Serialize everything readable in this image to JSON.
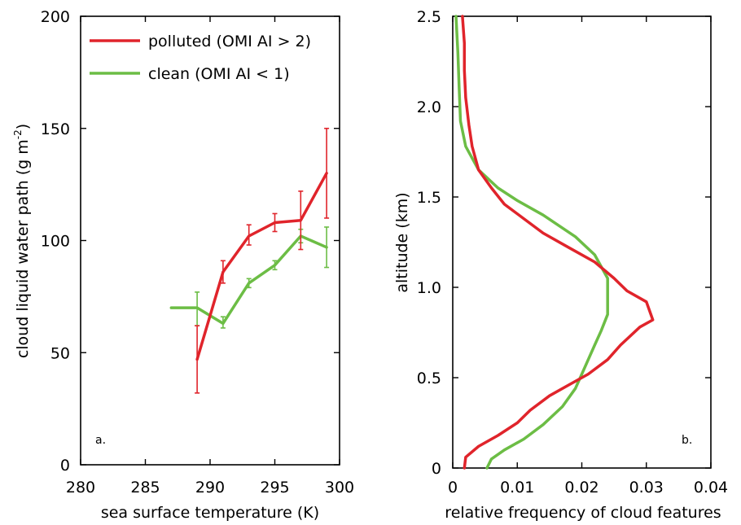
{
  "colors": {
    "polluted": "#e0242b",
    "clean": "#6cbd45",
    "axis": "#000000"
  },
  "chart_data": [
    {
      "type": "line",
      "panel_label": "a.",
      "xlabel": "sea surface temperature (K)",
      "ylabel_main": "cloud liquid water path (g m",
      "ylabel_sup": "-2",
      "ylabel_end": ")",
      "xlim": [
        280,
        300
      ],
      "ylim": [
        0,
        200
      ],
      "xticks": [
        280,
        285,
        290,
        295,
        300
      ],
      "yticks": [
        0,
        50,
        100,
        150,
        200
      ],
      "legend_position": "top-left",
      "series": [
        {
          "name": "polluted (OMI AI > 2)",
          "color_key": "polluted",
          "points": [
            [
              289,
              47
            ],
            [
              291,
              86
            ],
            [
              293,
              102
            ],
            [
              295,
              108
            ],
            [
              297,
              109
            ],
            [
              299,
              130
            ]
          ],
          "error_bars": [
            [
              289,
              32,
              62
            ],
            [
              291,
              81,
              91
            ],
            [
              293,
              98,
              107
            ],
            [
              295,
              104,
              112
            ],
            [
              297,
              96,
              122
            ],
            [
              299,
              110,
              150
            ]
          ]
        },
        {
          "name": "clean (OMI AI < 1)",
          "color_key": "clean",
          "points": [
            [
              287,
              70
            ],
            [
              289,
              70
            ],
            [
              291,
              63
            ],
            [
              293,
              81
            ],
            [
              295,
              89
            ],
            [
              297,
              102
            ],
            [
              299,
              97
            ]
          ],
          "error_bars": [
            [
              289,
              62,
              77
            ],
            [
              291,
              61,
              66
            ],
            [
              293,
              79,
              83
            ],
            [
              295,
              87,
              91
            ],
            [
              297,
              99,
              105
            ],
            [
              299,
              88,
              106
            ]
          ]
        }
      ]
    },
    {
      "type": "line",
      "panel_label": "b.",
      "xlabel": "relative frequency of cloud features",
      "ylabel": "altitude (km)",
      "xlim": [
        0,
        0.04
      ],
      "ylim": [
        0,
        2.5
      ],
      "xticks": [
        "0",
        "0.01",
        "0.02",
        "0.03",
        "0.04"
      ],
      "xtick_values": [
        0,
        0.01,
        0.02,
        0.03,
        0.04
      ],
      "yticks": [
        "0",
        "0.5",
        "1.0",
        "1.5",
        "2.0",
        "2.5"
      ],
      "ytick_values": [
        0,
        0.5,
        1.0,
        1.5,
        2.0,
        2.5
      ],
      "series": [
        {
          "color_key": "polluted",
          "points": [
            [
              0.0018,
              0.0
            ],
            [
              0.002,
              0.06
            ],
            [
              0.004,
              0.12
            ],
            [
              0.007,
              0.18
            ],
            [
              0.01,
              0.25
            ],
            [
              0.012,
              0.32
            ],
            [
              0.015,
              0.4
            ],
            [
              0.018,
              0.46
            ],
            [
              0.021,
              0.52
            ],
            [
              0.024,
              0.6
            ],
            [
              0.026,
              0.68
            ],
            [
              0.029,
              0.78
            ],
            [
              0.031,
              0.82
            ],
            [
              0.03,
              0.92
            ],
            [
              0.027,
              0.98
            ],
            [
              0.025,
              1.05
            ],
            [
              0.022,
              1.14
            ],
            [
              0.018,
              1.22
            ],
            [
              0.014,
              1.3
            ],
            [
              0.011,
              1.38
            ],
            [
              0.008,
              1.46
            ],
            [
              0.006,
              1.55
            ],
            [
              0.004,
              1.65
            ],
            [
              0.003,
              1.78
            ],
            [
              0.0025,
              1.9
            ],
            [
              0.002,
              2.05
            ],
            [
              0.0018,
              2.2
            ],
            [
              0.0018,
              2.35
            ],
            [
              0.0015,
              2.5
            ]
          ]
        },
        {
          "color_key": "clean",
          "points": [
            [
              0.0053,
              0.0
            ],
            [
              0.006,
              0.05
            ],
            [
              0.008,
              0.1
            ],
            [
              0.011,
              0.16
            ],
            [
              0.014,
              0.24
            ],
            [
              0.017,
              0.34
            ],
            [
              0.019,
              0.44
            ],
            [
              0.02,
              0.52
            ],
            [
              0.021,
              0.6
            ],
            [
              0.022,
              0.68
            ],
            [
              0.023,
              0.76
            ],
            [
              0.024,
              0.85
            ],
            [
              0.024,
              0.95
            ],
            [
              0.024,
              1.05
            ],
            [
              0.022,
              1.18
            ],
            [
              0.019,
              1.28
            ],
            [
              0.014,
              1.4
            ],
            [
              0.01,
              1.48
            ],
            [
              0.007,
              1.55
            ],
            [
              0.004,
              1.65
            ],
            [
              0.002,
              1.78
            ],
            [
              0.0012,
              1.92
            ],
            [
              0.001,
              2.1
            ],
            [
              0.0008,
              2.3
            ],
            [
              0.0005,
              2.5
            ]
          ]
        }
      ]
    }
  ]
}
